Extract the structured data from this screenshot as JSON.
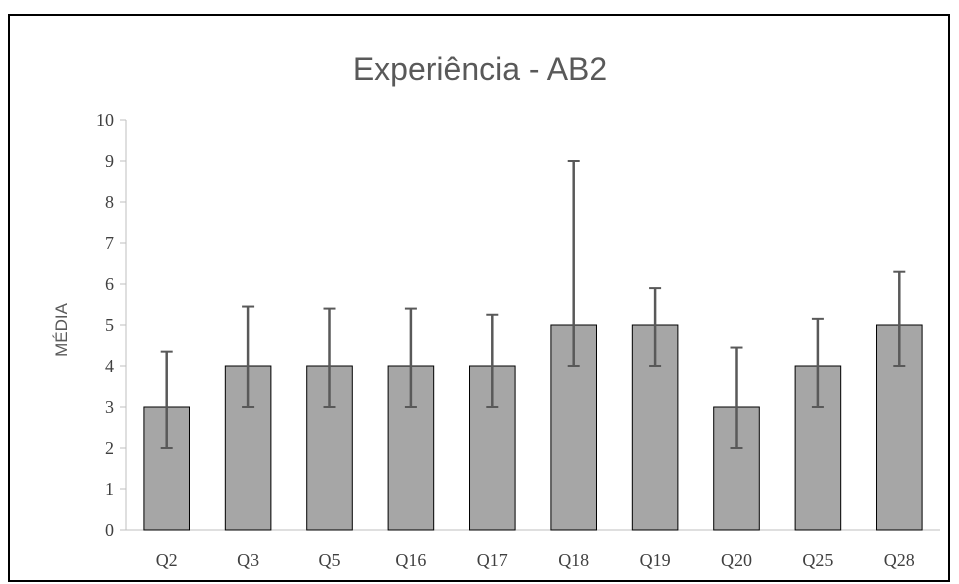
{
  "chart_data": {
    "type": "bar",
    "title": "Experiência - AB2",
    "xlabel": "",
    "ylabel": "MÉDIA",
    "categories": [
      "Q2",
      "Q3",
      "Q5",
      "Q16",
      "Q17",
      "Q18",
      "Q19",
      "Q20",
      "Q25",
      "Q28"
    ],
    "values": [
      3,
      4,
      4,
      4,
      4,
      5,
      5,
      3,
      4,
      5
    ],
    "error_low": [
      2,
      3,
      3,
      3,
      3,
      4,
      4,
      2,
      3,
      4
    ],
    "error_high": [
      4.35,
      5.45,
      5.4,
      5.4,
      5.25,
      9,
      5.9,
      4.45,
      5.15,
      6.3
    ],
    "ylim": [
      0,
      10
    ],
    "yticks": [
      0,
      1,
      2,
      3,
      4,
      5,
      6,
      7,
      8,
      9,
      10
    ],
    "grid": false,
    "legend": "none",
    "colors": {
      "bar_fill": "#a6a6a6",
      "bar_stroke": "#000000",
      "error_bar": "#595959",
      "axis": "#bfbfbf"
    }
  }
}
